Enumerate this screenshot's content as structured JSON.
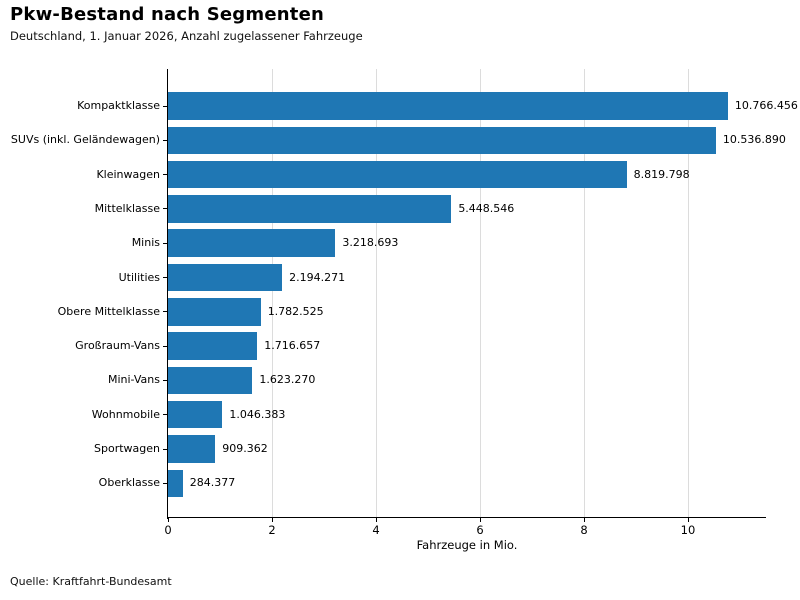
{
  "title": "Pkw-Bestand nach Segmenten",
  "subtitle": "Deutschland, 1. Januar 2026, Anzahl zugelassener Fahrzeuge",
  "source": "Quelle: Kraftfahrt-Bundesamt",
  "chart_data": {
    "type": "bar",
    "orientation": "horizontal",
    "title": "Pkw-Bestand nach Segmenten",
    "subtitle": "Deutschland, 1. Januar 2026, Anzahl zugelassener Fahrzeuge",
    "xlabel": "Fahrzeuge in Mio.",
    "ylabel": "",
    "categories": [
      "Kompaktklasse",
      "SUVs (inkl. Geländewagen)",
      "Kleinwagen",
      "Mittelklasse",
      "Minis",
      "Utilities",
      "Obere Mittelklasse",
      "Großraum-Vans",
      "Mini-Vans",
      "Wohnmobile",
      "Sportwagen",
      "Oberklasse"
    ],
    "values": [
      10766456,
      10536890,
      8819798,
      5448546,
      3218693,
      2194271,
      1782525,
      1716657,
      1623270,
      1046383,
      909362,
      284377
    ],
    "value_labels": [
      "10.766.456",
      "10.536.890",
      "8.819.798",
      "5.448.546",
      "3.218.693",
      "2.194.271",
      "1.782.525",
      "1.716.657",
      "1.623.270",
      "1.046.383",
      "909.362",
      "284.377"
    ],
    "unit_divisor": 1000000,
    "xlim": [
      0,
      11.5
    ],
    "xticks": [
      0,
      2,
      4,
      6,
      8,
      10
    ],
    "xtick_labels": [
      "0",
      "2",
      "4",
      "6",
      "8",
      "10"
    ],
    "grid": "vertical",
    "legend": "none",
    "bar_color": "#1f77b4",
    "grid_color": "#dcdcdc",
    "axis_color": "#000000",
    "text_color": "#000000"
  }
}
